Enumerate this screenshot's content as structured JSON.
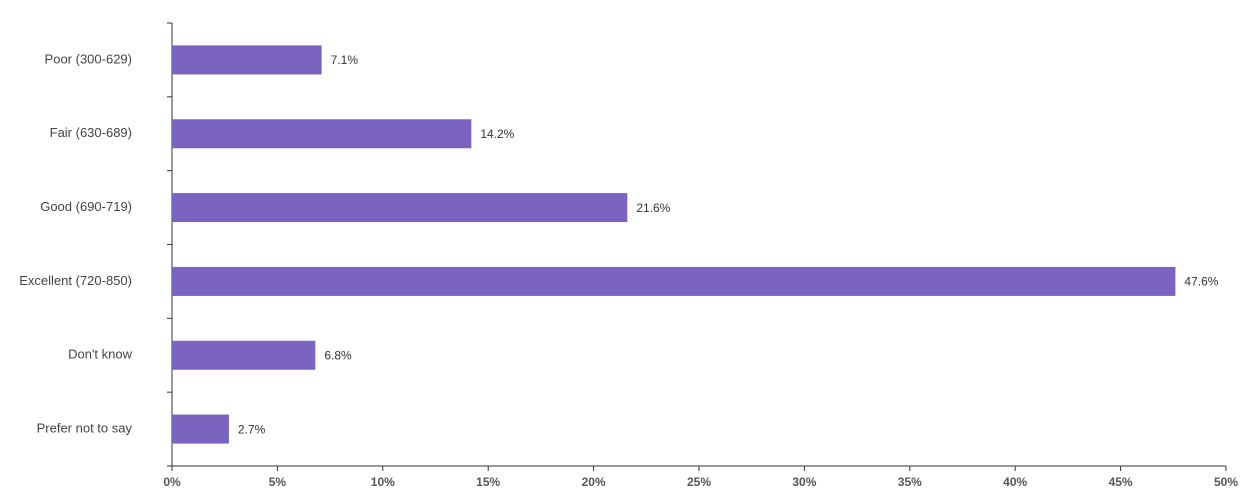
{
  "chart_data": {
    "type": "hbar",
    "categories": [
      "Poor (300-629)",
      "Fair (630-689)",
      "Good (690-719)",
      "Excellent (720-850)",
      "Don't know",
      "Prefer not to say"
    ],
    "values": [
      7.1,
      14.2,
      21.6,
      47.6,
      6.8,
      2.7
    ],
    "value_labels": [
      "7.1%",
      "14.2%",
      "21.6%",
      "47.6%",
      "6.8%",
      "2.7%"
    ],
    "color": "#7b64c0",
    "xlim": [
      0,
      50
    ],
    "xticks": [
      {
        "value": 0,
        "label": "0%"
      },
      {
        "value": 5,
        "label": "5%"
      },
      {
        "value": 10,
        "label": "10%"
      },
      {
        "value": 15,
        "label": "15%"
      },
      {
        "value": 20,
        "label": "20%"
      },
      {
        "value": 25,
        "label": "25%"
      },
      {
        "value": 30,
        "label": "30%"
      },
      {
        "value": 35,
        "label": "35%"
      },
      {
        "value": 40,
        "label": "40%"
      },
      {
        "value": 45,
        "label": "45%"
      },
      {
        "value": 50,
        "label": "50%"
      }
    ],
    "grid": false
  }
}
